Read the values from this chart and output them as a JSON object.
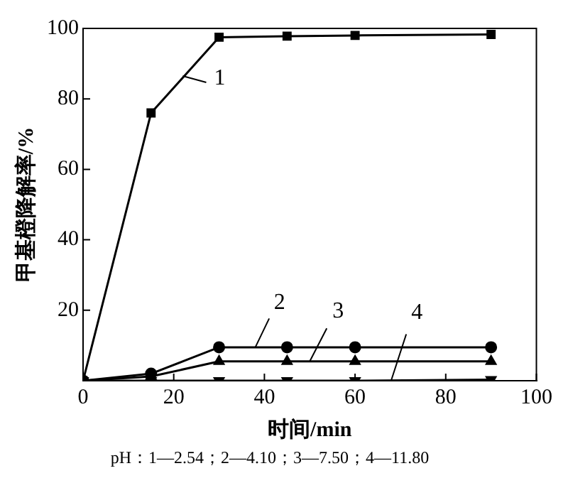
{
  "chart_data": {
    "type": "line",
    "xlabel": "时间/min",
    "ylabel": "甲基橙降解率/%",
    "x": [
      0,
      15,
      30,
      45,
      60,
      90
    ],
    "series": [
      {
        "color": "#000000",
        "marker": "square",
        "values": [
          0,
          76,
          97.5,
          97.8,
          98,
          98.3
        ]
      },
      {
        "color": "#000000",
        "marker": "circle",
        "values": [
          0,
          2,
          9.5,
          9.5,
          9.5,
          9.5
        ]
      },
      {
        "color": "#000000",
        "marker": "triangle",
        "values": [
          0,
          1.2,
          5.5,
          5.5,
          5.5,
          5.5
        ]
      },
      {
        "color": "#000000",
        "marker": "triangle-down",
        "values": [
          0,
          0,
          0,
          0,
          0,
          0.3
        ]
      }
    ],
    "xlim": [
      0,
      100
    ],
    "xticks": [
      0,
      20,
      40,
      60,
      80,
      100
    ],
    "ylim": [
      0,
      100
    ],
    "yticks": [
      {
        "value": 0,
        "label": null
      },
      20,
      40,
      60,
      80,
      100
    ],
    "annotations": [
      {
        "text": "1",
        "x": 22,
        "y": 86.5
      },
      {
        "text": "2",
        "x": 38,
        "y": 9.5
      },
      {
        "text": "3",
        "x": 50,
        "y": 5.5
      },
      {
        "text": "4",
        "x": 68,
        "y": 0.2
      },
      "pH：1—2.54；2—4.10；3—7.50；4—11.80"
    ],
    "legend": false,
    "grid": false,
    "line_style": "solid"
  }
}
